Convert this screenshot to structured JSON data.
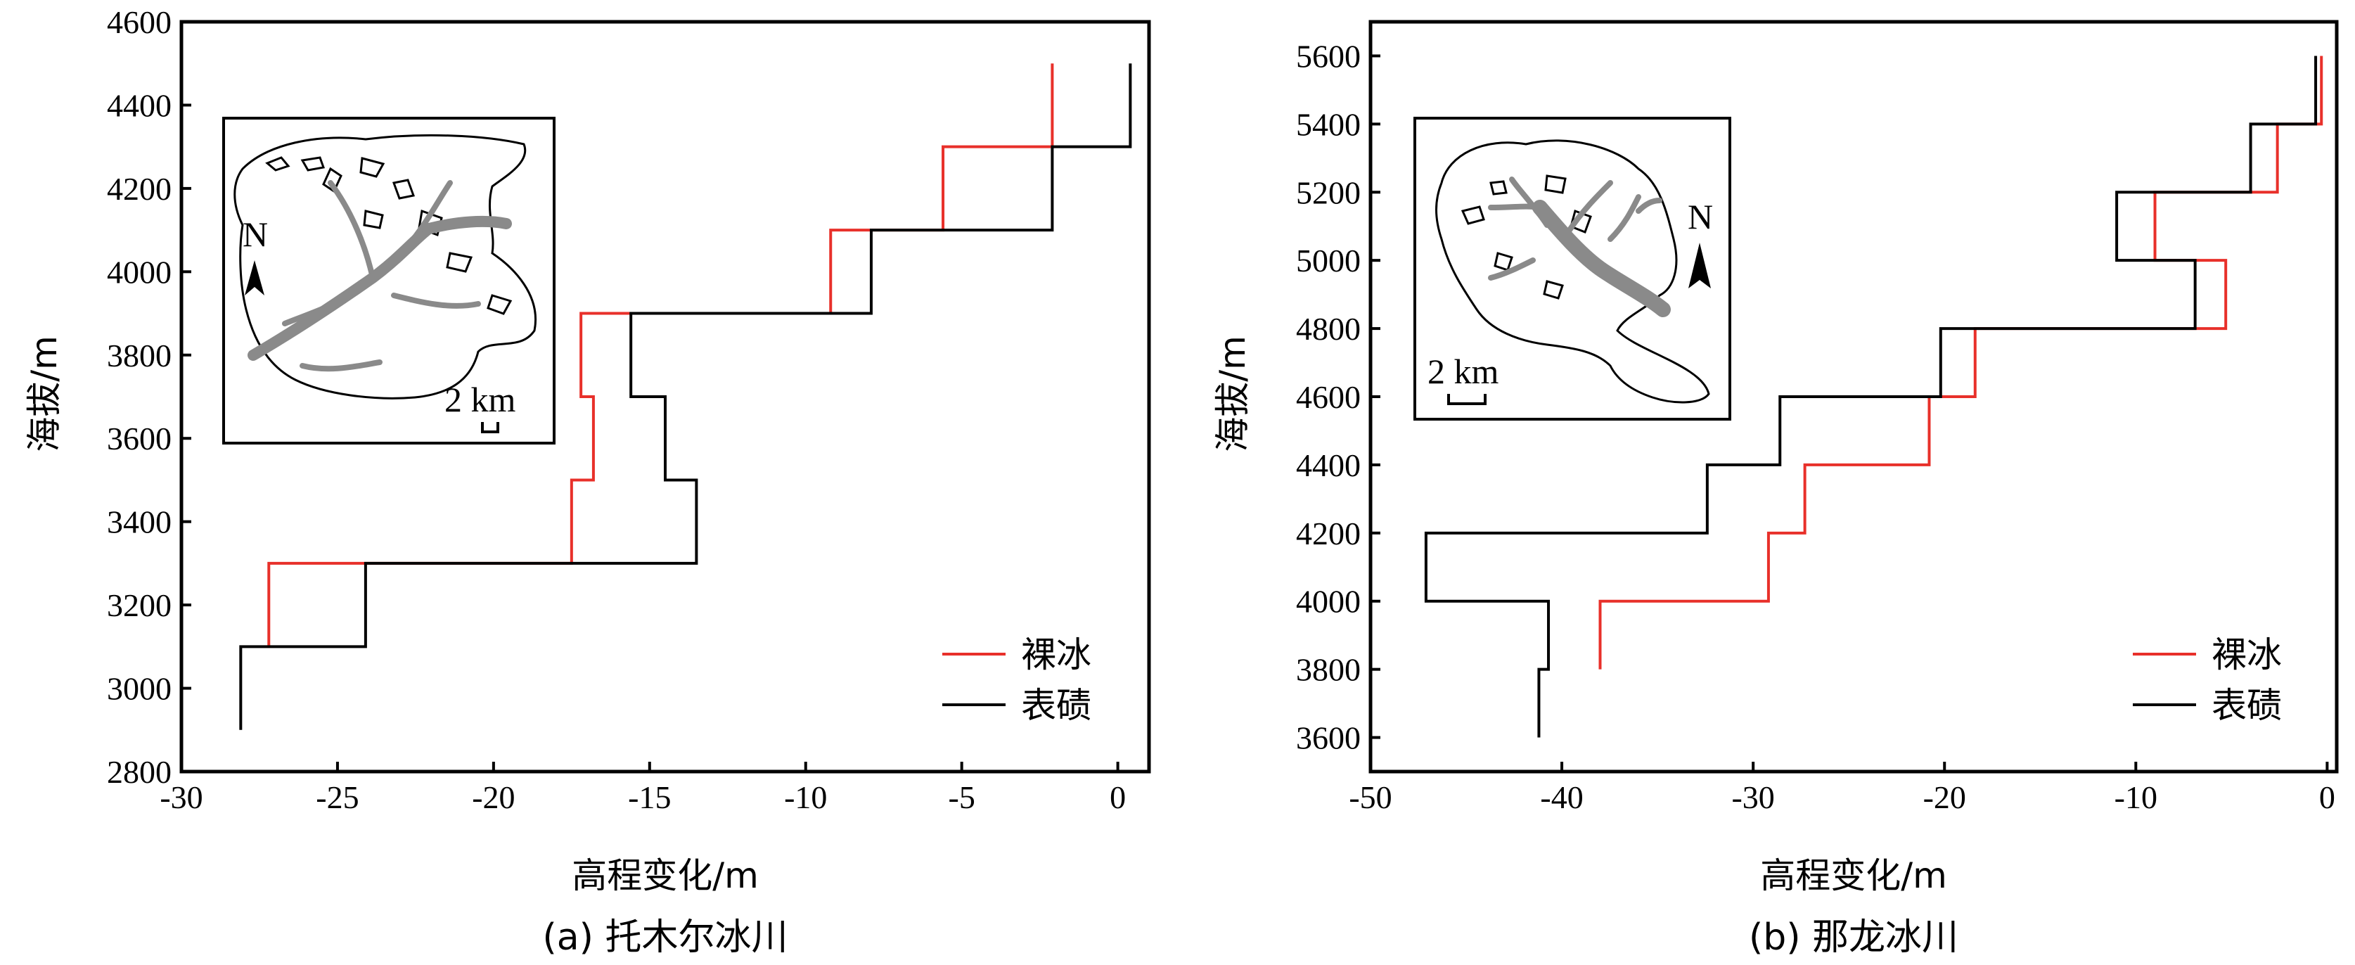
{
  "chart_data": [
    {
      "type": "line",
      "panel": "a",
      "caption": "(a) 托木尔冰川",
      "xlabel": "高程变化/m",
      "ylabel": "海拔/m",
      "xlim": [
        -30,
        1
      ],
      "ylim": [
        2800,
        4600
      ],
      "xticks": [
        -30,
        -25,
        -20,
        -15,
        -10,
        -5,
        0
      ],
      "yticks": [
        2800,
        3000,
        3200,
        3400,
        3600,
        3800,
        4000,
        4200,
        4400,
        4600
      ],
      "legend_position": "bottom-right",
      "series": [
        {
          "name": "裸冰",
          "color": "#e8302a",
          "bins": [
            {
              "y0": 3100,
              "y1": 3300,
              "x": -27.2
            },
            {
              "y0": 3300,
              "y1": 3500,
              "x": -17.5
            },
            {
              "y0": 3500,
              "y1": 3700,
              "x": -16.8
            },
            {
              "y0": 3700,
              "y1": 3900,
              "x": -17.2
            },
            {
              "y0": 3900,
              "y1": 4100,
              "x": -9.2
            },
            {
              "y0": 4100,
              "y1": 4300,
              "x": -5.6
            },
            {
              "y0": 4300,
              "y1": 4500,
              "x": -2.1
            }
          ]
        },
        {
          "name": "表碛",
          "color": "#000000",
          "bins": [
            {
              "y0": 2900,
              "y1": 3100,
              "x": -28.1
            },
            {
              "y0": 3100,
              "y1": 3300,
              "x": -24.1
            },
            {
              "y0": 3300,
              "y1": 3500,
              "x": -13.5
            },
            {
              "y0": 3500,
              "y1": 3700,
              "x": -14.5
            },
            {
              "y0": 3700,
              "y1": 3900,
              "x": -15.6
            },
            {
              "y0": 3900,
              "y1": 4100,
              "x": -7.9
            },
            {
              "y0": 4100,
              "y1": 4300,
              "x": -2.1
            },
            {
              "y0": 4300,
              "y1": 4500,
              "x": 0.4
            }
          ]
        }
      ],
      "inset": {
        "north_label": "N",
        "scale_label": "2 km"
      }
    },
    {
      "type": "line",
      "panel": "b",
      "caption": "(b) 那龙冰川",
      "xlabel": "高程变化/m",
      "ylabel": "海拔/m",
      "xlim": [
        -50,
        0.5
      ],
      "ylim": [
        3500,
        5700
      ],
      "xticks": [
        -50,
        -40,
        -30,
        -20,
        -10,
        0
      ],
      "yticks": [
        3600,
        3800,
        4000,
        4200,
        4400,
        4600,
        4800,
        5000,
        5200,
        5400,
        5600
      ],
      "legend_position": "bottom-right",
      "series": [
        {
          "name": "裸冰",
          "color": "#e8302a",
          "bins": [
            {
              "y0": 3800,
              "y1": 4000,
              "x": -38.0
            },
            {
              "y0": 4000,
              "y1": 4200,
              "x": -29.2
            },
            {
              "y0": 4200,
              "y1": 4400,
              "x": -27.3
            },
            {
              "y0": 4400,
              "y1": 4600,
              "x": -20.8
            },
            {
              "y0": 4600,
              "y1": 4800,
              "x": -18.4
            },
            {
              "y0": 4800,
              "y1": 5000,
              "x": -5.3
            },
            {
              "y0": 5000,
              "y1": 5200,
              "x": -9.0
            },
            {
              "y0": 5200,
              "y1": 5400,
              "x": -2.6
            },
            {
              "y0": 5400,
              "y1": 5600,
              "x": -0.3
            }
          ]
        },
        {
          "name": "表碛",
          "color": "#000000",
          "bins": [
            {
              "y0": 3600,
              "y1": 3800,
              "x": -41.2
            },
            {
              "y0": 3800,
              "y1": 4000,
              "x": -40.7
            },
            {
              "y0": 4000,
              "y1": 4200,
              "x": -47.1
            },
            {
              "y0": 4200,
              "y1": 4400,
              "x": -32.4
            },
            {
              "y0": 4400,
              "y1": 4600,
              "x": -28.6
            },
            {
              "y0": 4600,
              "y1": 4800,
              "x": -20.2
            },
            {
              "y0": 4800,
              "y1": 5000,
              "x": -6.9
            },
            {
              "y0": 5000,
              "y1": 5200,
              "x": -11.0
            },
            {
              "y0": 5200,
              "y1": 5400,
              "x": -4.0
            },
            {
              "y0": 5400,
              "y1": 5600,
              "x": -0.6
            }
          ]
        }
      ],
      "inset": {
        "north_label": "N",
        "scale_label": "2 km"
      }
    }
  ]
}
